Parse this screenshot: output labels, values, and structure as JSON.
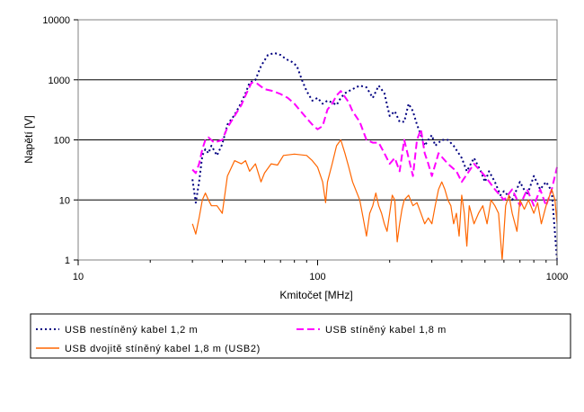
{
  "chart_data": {
    "type": "line",
    "title": "",
    "xlabel": "Kmitočet [MHz]",
    "ylabel": "Napětí [V]",
    "xscale": "log",
    "yscale": "log",
    "xlim": [
      10,
      1000
    ],
    "ylim": [
      1,
      10000
    ],
    "x_ticks": [
      "10",
      "100",
      "1000"
    ],
    "y_ticks": [
      "1",
      "10",
      "100",
      "1000",
      "10000"
    ],
    "grid": "horizontal major gridlines",
    "legend_position": "bottom",
    "series": [
      {
        "name": "USB nestíněný kabel 1,2 m",
        "color": "#000080",
        "style": "dotted",
        "points": [
          [
            30,
            22
          ],
          [
            31,
            9
          ],
          [
            32,
            20
          ],
          [
            33,
            55
          ],
          [
            34,
            70
          ],
          [
            35,
            60
          ],
          [
            36,
            80
          ],
          [
            38,
            55
          ],
          [
            40,
            85
          ],
          [
            42,
            180
          ],
          [
            45,
            260
          ],
          [
            48,
            420
          ],
          [
            50,
            600
          ],
          [
            52,
            900
          ],
          [
            55,
            1000
          ],
          [
            58,
            1700
          ],
          [
            62,
            2600
          ],
          [
            66,
            2800
          ],
          [
            70,
            2600
          ],
          [
            74,
            2200
          ],
          [
            78,
            2000
          ],
          [
            82,
            1700
          ],
          [
            86,
            1000
          ],
          [
            90,
            650
          ],
          [
            95,
            450
          ],
          [
            100,
            500
          ],
          [
            105,
            400
          ],
          [
            110,
            450
          ],
          [
            115,
            420
          ],
          [
            120,
            380
          ],
          [
            125,
            500
          ],
          [
            130,
            600
          ],
          [
            140,
            700
          ],
          [
            150,
            800
          ],
          [
            160,
            750
          ],
          [
            170,
            500
          ],
          [
            180,
            800
          ],
          [
            190,
            600
          ],
          [
            200,
            250
          ],
          [
            210,
            300
          ],
          [
            220,
            200
          ],
          [
            230,
            200
          ],
          [
            240,
            400
          ],
          [
            250,
            300
          ],
          [
            260,
            180
          ],
          [
            270,
            120
          ],
          [
            280,
            80
          ],
          [
            290,
            100
          ],
          [
            300,
            120
          ],
          [
            310,
            80
          ],
          [
            330,
            100
          ],
          [
            350,
            100
          ],
          [
            370,
            80
          ],
          [
            400,
            50
          ],
          [
            420,
            30
          ],
          [
            450,
            50
          ],
          [
            480,
            30
          ],
          [
            500,
            20
          ],
          [
            520,
            30
          ],
          [
            550,
            20
          ],
          [
            580,
            12
          ],
          [
            600,
            14
          ],
          [
            650,
            10
          ],
          [
            700,
            20
          ],
          [
            750,
            12
          ],
          [
            800,
            25
          ],
          [
            850,
            15
          ],
          [
            900,
            20
          ],
          [
            950,
            14
          ],
          [
            1000,
            1
          ]
        ]
      },
      {
        "name": "USB stíněný kabel 1,8 m",
        "color": "#ff00ff",
        "style": "dashed",
        "points": [
          [
            30,
            32
          ],
          [
            31,
            28
          ],
          [
            32,
            40
          ],
          [
            33,
            70
          ],
          [
            34,
            100
          ],
          [
            35,
            110
          ],
          [
            37,
            90
          ],
          [
            40,
            100
          ],
          [
            42,
            160
          ],
          [
            45,
            250
          ],
          [
            48,
            380
          ],
          [
            50,
            550
          ],
          [
            53,
            900
          ],
          [
            56,
            860
          ],
          [
            60,
            700
          ],
          [
            65,
            650
          ],
          [
            70,
            580
          ],
          [
            75,
            500
          ],
          [
            80,
            400
          ],
          [
            85,
            300
          ],
          [
            90,
            230
          ],
          [
            95,
            180
          ],
          [
            100,
            150
          ],
          [
            105,
            170
          ],
          [
            110,
            320
          ],
          [
            115,
            400
          ],
          [
            120,
            550
          ],
          [
            125,
            650
          ],
          [
            130,
            520
          ],
          [
            135,
            420
          ],
          [
            140,
            300
          ],
          [
            150,
            200
          ],
          [
            160,
            100
          ],
          [
            170,
            90
          ],
          [
            180,
            90
          ],
          [
            190,
            60
          ],
          [
            200,
            40
          ],
          [
            210,
            50
          ],
          [
            220,
            30
          ],
          [
            230,
            100
          ],
          [
            240,
            50
          ],
          [
            250,
            25
          ],
          [
            260,
            100
          ],
          [
            270,
            150
          ],
          [
            280,
            60
          ],
          [
            290,
            40
          ],
          [
            300,
            25
          ],
          [
            320,
            60
          ],
          [
            350,
            40
          ],
          [
            380,
            30
          ],
          [
            400,
            20
          ],
          [
            450,
            40
          ],
          [
            500,
            25
          ],
          [
            550,
            15
          ],
          [
            600,
            10
          ],
          [
            650,
            15
          ],
          [
            700,
            8
          ],
          [
            750,
            15
          ],
          [
            800,
            8
          ],
          [
            850,
            15
          ],
          [
            900,
            8
          ],
          [
            950,
            15
          ],
          [
            1000,
            35
          ]
        ]
      },
      {
        "name": "USB dvojitě stíněný kabel 1,8 m (USB2)",
        "color": "#ff6600",
        "style": "solid",
        "points": [
          [
            30,
            4
          ],
          [
            31,
            2.7
          ],
          [
            32,
            5
          ],
          [
            33,
            10
          ],
          [
            34,
            13
          ],
          [
            35,
            10
          ],
          [
            36,
            8
          ],
          [
            38,
            8
          ],
          [
            40,
            6
          ],
          [
            42,
            25
          ],
          [
            45,
            45
          ],
          [
            48,
            40
          ],
          [
            50,
            45
          ],
          [
            52,
            30
          ],
          [
            55,
            40
          ],
          [
            58,
            20
          ],
          [
            60,
            28
          ],
          [
            64,
            40
          ],
          [
            68,
            38
          ],
          [
            72,
            55
          ],
          [
            80,
            58
          ],
          [
            90,
            55
          ],
          [
            95,
            45
          ],
          [
            100,
            35
          ],
          [
            105,
            20
          ],
          [
            108,
            9
          ],
          [
            110,
            20
          ],
          [
            115,
            40
          ],
          [
            120,
            80
          ],
          [
            125,
            100
          ],
          [
            130,
            60
          ],
          [
            135,
            35
          ],
          [
            140,
            20
          ],
          [
            150,
            10
          ],
          [
            155,
            5
          ],
          [
            160,
            2.5
          ],
          [
            165,
            6
          ],
          [
            170,
            8
          ],
          [
            175,
            13
          ],
          [
            180,
            8
          ],
          [
            185,
            6
          ],
          [
            190,
            4
          ],
          [
            195,
            3
          ],
          [
            200,
            6
          ],
          [
            205,
            12
          ],
          [
            210,
            10
          ],
          [
            215,
            2
          ],
          [
            220,
            4
          ],
          [
            225,
            7
          ],
          [
            230,
            10
          ],
          [
            240,
            12
          ],
          [
            250,
            8
          ],
          [
            260,
            9
          ],
          [
            270,
            6
          ],
          [
            280,
            4
          ],
          [
            290,
            5
          ],
          [
            300,
            4
          ],
          [
            310,
            8
          ],
          [
            320,
            15
          ],
          [
            330,
            20
          ],
          [
            340,
            15
          ],
          [
            350,
            10
          ],
          [
            360,
            8
          ],
          [
            370,
            4
          ],
          [
            380,
            6
          ],
          [
            390,
            2.5
          ],
          [
            400,
            12
          ],
          [
            410,
            6
          ],
          [
            420,
            1.7
          ],
          [
            430,
            8
          ],
          [
            450,
            4
          ],
          [
            470,
            6
          ],
          [
            490,
            8
          ],
          [
            510,
            4
          ],
          [
            530,
            10
          ],
          [
            550,
            8
          ],
          [
            570,
            6
          ],
          [
            590,
            1
          ],
          [
            610,
            8
          ],
          [
            630,
            12
          ],
          [
            650,
            6
          ],
          [
            680,
            3
          ],
          [
            700,
            10
          ],
          [
            730,
            7
          ],
          [
            760,
            10
          ],
          [
            800,
            6
          ],
          [
            830,
            9
          ],
          [
            860,
            4
          ],
          [
            900,
            8
          ],
          [
            950,
            15
          ],
          [
            980,
            10
          ],
          [
            1000,
            4
          ]
        ]
      }
    ]
  }
}
